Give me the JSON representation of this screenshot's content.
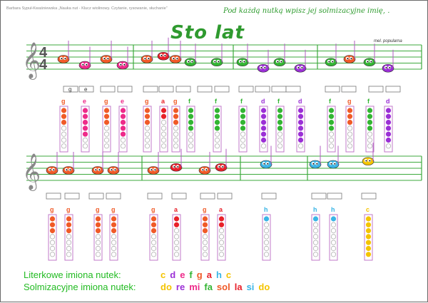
{
  "header": {
    "author": "Barbara Sypuł-Kwaśniewska „Nauka nut - Klucz wiolinowy. Czytanie, rysowanie, słuchanie”",
    "instruction": "Pod każdą nutką wpisz jej solmizacyjne imię, .",
    "title": "Sto lat",
    "credit": "mel. popularna"
  },
  "colors": {
    "c": "#f4c400",
    "d": "#9b2fd6",
    "e": "#ee2a8a",
    "f": "#33b533",
    "g": "#f05a28",
    "a": "#e8202a",
    "h": "#3ab5e6",
    "staff": "#3daa3d",
    "stem": "#b05ec0"
  },
  "time_signature": {
    "top": "4",
    "bottom": "4"
  },
  "row1": {
    "example_boxes": [
      "g",
      "e"
    ],
    "letters": [
      "g",
      "e",
      "g",
      "e",
      "g",
      "a",
      "g",
      "f",
      "f",
      "f",
      "d",
      "f",
      "d",
      "f",
      "g",
      "f",
      "d"
    ]
  },
  "row2": {
    "letters": [
      "g",
      "g",
      "g",
      "g",
      "g",
      "a",
      "g",
      "a",
      "h",
      "h",
      "h",
      "c"
    ]
  },
  "legend": {
    "letter_label": "Literkowe imiona nutek:",
    "solfege_label": "Solmizacyjne imiona nutek:",
    "letters": [
      {
        "text": "c",
        "color": "#f4c400"
      },
      {
        "text": "d",
        "color": "#9b2fd6"
      },
      {
        "text": "e",
        "color": "#ee2a8a"
      },
      {
        "text": "f",
        "color": "#33b533"
      },
      {
        "text": "g",
        "color": "#f05a28"
      },
      {
        "text": "a",
        "color": "#e8202a"
      },
      {
        "text": "h",
        "color": "#3ab5e6"
      },
      {
        "text": "c",
        "color": "#f4c400"
      }
    ],
    "solfege": [
      {
        "text": "do",
        "color": "#f4c400"
      },
      {
        "text": "re",
        "color": "#9b2fd6"
      },
      {
        "text": "mi",
        "color": "#ee2a8a"
      },
      {
        "text": "fa",
        "color": "#33b533"
      },
      {
        "text": "sol",
        "color": "#f05a28"
      },
      {
        "text": "la",
        "color": "#e8202a"
      },
      {
        "text": "si",
        "color": "#3ab5e6"
      },
      {
        "text": "do",
        "color": "#f4c400"
      }
    ]
  }
}
